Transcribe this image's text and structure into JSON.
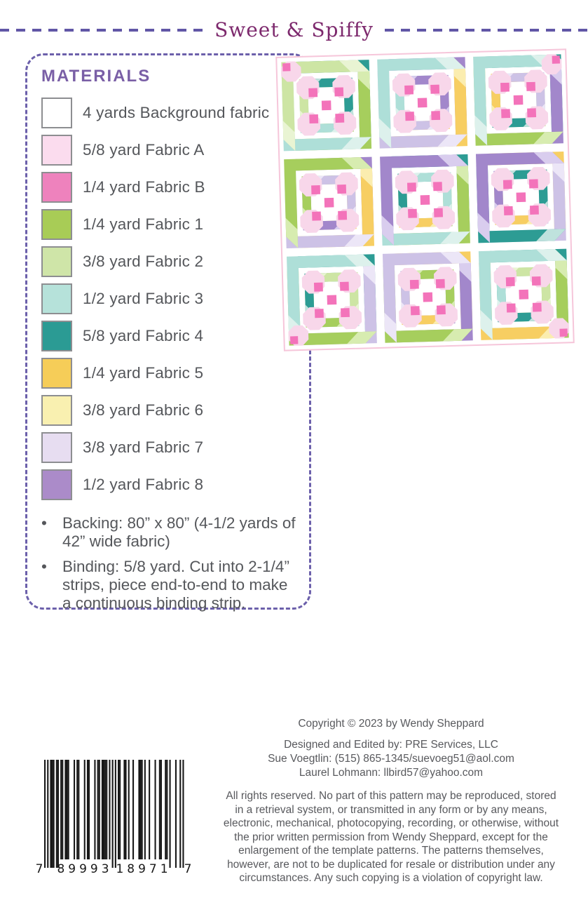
{
  "header": {
    "title": "Sweet & Spiffy"
  },
  "materials": {
    "heading": "MATERIALS",
    "items": [
      {
        "name": "background-fabric",
        "label": "4 yards Background fabric",
        "hex": "#ffffff"
      },
      {
        "name": "fabric-a",
        "label": "5/8 yard Fabric A",
        "hex": "#fbdcee"
      },
      {
        "name": "fabric-b",
        "label": "1/4 yard Fabric B",
        "hex": "#ee82bd"
      },
      {
        "name": "fabric-1",
        "label": "1/4 yard Fabric 1",
        "hex": "#a8cc56"
      },
      {
        "name": "fabric-2",
        "label": "3/8 yard Fabric 2",
        "hex": "#cfe5a8"
      },
      {
        "name": "fabric-3",
        "label": "1/2 yard Fabric 3",
        "hex": "#b6e2da"
      },
      {
        "name": "fabric-4",
        "label": "5/8 yard Fabric 4",
        "hex": "#2b9b94"
      },
      {
        "name": "fabric-5",
        "label": "1/4 yard Fabric 5",
        "hex": "#f6cd58"
      },
      {
        "name": "fabric-6",
        "label": "3/8 yard Fabric 6",
        "hex": "#f9f0b0"
      },
      {
        "name": "fabric-7",
        "label": "3/8 yard Fabric 7",
        "hex": "#e7ddf1"
      },
      {
        "name": "fabric-8",
        "label": "1/2 yard Fabric 8",
        "hex": "#ab8bc9"
      }
    ],
    "bullet_char": "•",
    "bullets": [
      "Backing: 80” x 80” (4-1/2 yards of 42” wide fabric)",
      "Binding: 5/8 yard. Cut into 2-1/4” strips, piece end-to-end to make a continuous binding strip."
    ]
  },
  "quilt": {
    "border_color": "#f6c6da",
    "background": "#ffffff",
    "rotation_deg": -1.6,
    "palette": {
      "teal": "#2d9c94",
      "teal_light": "#bfe2dd",
      "aqua": "#aedfd8",
      "aqua_light": "#ddf1ec",
      "green": "#a6ce5d",
      "green_light": "#d7ecb0",
      "pale_green": "#cde5a4",
      "pale_green_light": "#e9f4d3",
      "purple": "#a287cb",
      "purple_light": "#d9cdee",
      "lavender": "#cdc2e6",
      "lavender_light": "#ece6f7",
      "gold": "#f7ce62",
      "gold_light": "#fbedaf",
      "blossom": "#f8d7ea",
      "hot_pink": "#f373ba"
    },
    "clusters": [
      {
        "outer": [
          "teal",
          "green",
          "aqua",
          "pale_green"
        ],
        "inner": [
          "green",
          "aqua",
          "pale_green",
          "teal"
        ]
      },
      {
        "outer": [
          "purple",
          "gold",
          "lavender",
          "aqua"
        ],
        "inner": [
          "gold",
          "lavender",
          "aqua",
          "purple"
        ]
      },
      {
        "outer": [
          "teal",
          "purple",
          "green",
          "aqua"
        ],
        "inner": [
          "pale_green",
          "teal",
          "gold",
          "lavender"
        ]
      },
      {
        "outer": [
          "purple",
          "gold",
          "lavender",
          "green"
        ],
        "inner": [
          "gold",
          "purple",
          "green",
          "lavender"
        ]
      },
      {
        "outer": [
          "teal",
          "green",
          "aqua",
          "purple"
        ],
        "inner": [
          "green",
          "gold",
          "teal",
          "aqua"
        ]
      },
      {
        "outer": [
          "gold",
          "lavender",
          "teal",
          "purple"
        ],
        "inner": [
          "lavender",
          "gold",
          "purple",
          "teal"
        ]
      },
      {
        "outer": [
          "teal",
          "lavender",
          "green",
          "aqua"
        ],
        "inner": [
          "aqua",
          "green",
          "teal",
          "pale_green"
        ]
      },
      {
        "outer": [
          "gold",
          "purple",
          "green",
          "lavender"
        ],
        "inner": [
          "purple",
          "gold",
          "lavender",
          "green"
        ]
      },
      {
        "outer": [
          "teal",
          "green",
          "gold",
          "aqua"
        ],
        "inner": [
          "green",
          "teal",
          "aqua",
          "pale_green"
        ]
      }
    ]
  },
  "footer": {
    "copyright": "Copyright © 2023 by Wendy Sheppard",
    "contact_lines": [
      "Designed and Edited by: PRE Services, LLC",
      "Sue Voegtlin: (515) 865-1345/suevoeg51@aol.com",
      "Laurel Lohmann: llbird57@yahoo.com"
    ],
    "rights_lines": [
      "All rights reserved. No part of this pattern may be reproduced, stored",
      "in a retrieval system, or transmitted in any form or by any means,",
      "electronic, mechanical, photocopying, recording, or otherwise, without",
      "the prior written permission from Wendy Sheppard, except for the",
      "enlargement of the template patterns. The patterns themselves,",
      "however, are not to be duplicated for resale or distribution under any",
      "circumstances. Any such copying is a violation of copyright law."
    ]
  },
  "barcode": {
    "digits": "789993189717",
    "display_left_outer": "7",
    "display_left_group": "89993",
    "display_right_group": "18971",
    "display_right_outer": "7"
  }
}
